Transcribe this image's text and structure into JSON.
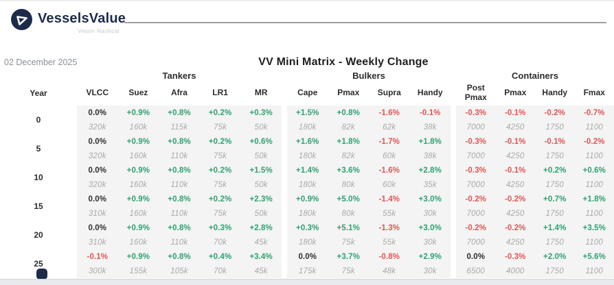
{
  "header": {
    "brand": "VesselsValue",
    "brand_sub": "Veson Nautical",
    "date": "02 December 2025",
    "title": "VV Mini Matrix - Weekly Change"
  },
  "colors": {
    "green": "#2EA172",
    "red": "#E25454",
    "navy": "#1D2B4A",
    "dark_text": "#2E2E2E",
    "value_gray": "#A8A8A8",
    "block_bg": "#F4F4F4"
  },
  "table": {
    "year_header": "Year",
    "groups": [
      {
        "label": "Tankers",
        "columns": [
          "VLCC",
          "Suez",
          "Afra",
          "LR1",
          "MR"
        ]
      },
      {
        "label": "Bulkers",
        "columns": [
          "Cape",
          "Pmax",
          "Supra",
          "Handy"
        ]
      },
      {
        "label": "Containers",
        "columns": [
          "Post Pmax",
          "Pmax",
          "Handy",
          "Fmax"
        ]
      }
    ],
    "rows": [
      {
        "year": "0",
        "groups": [
          {
            "pct": [
              "0.0%",
              "+0.9%",
              "+0.8%",
              "+0.2%",
              "+0.3%"
            ],
            "val": [
              "320k",
              "160k",
              "115k",
              "75k",
              "50k"
            ]
          },
          {
            "pct": [
              "+1.5%",
              "+0.8%",
              "-1.6%",
              "-0.1%"
            ],
            "val": [
              "180k",
              "82k",
              "62k",
              "38k"
            ]
          },
          {
            "pct": [
              "-0.3%",
              "-0.1%",
              "-0.2%",
              "-0.7%"
            ],
            "val": [
              "7000",
              "4250",
              "1750",
              "1100"
            ]
          }
        ]
      },
      {
        "year": "5",
        "groups": [
          {
            "pct": [
              "0.0%",
              "+0.9%",
              "+0.8%",
              "+0.2%",
              "+0.6%"
            ],
            "val": [
              "320k",
              "160k",
              "110k",
              "75k",
              "50k"
            ]
          },
          {
            "pct": [
              "+1.6%",
              "+1.8%",
              "-1.7%",
              "+1.8%"
            ],
            "val": [
              "180k",
              "82k",
              "60k",
              "38k"
            ]
          },
          {
            "pct": [
              "-0.3%",
              "-0.1%",
              "-0.1%",
              "-0.2%"
            ],
            "val": [
              "7000",
              "4250",
              "1750",
              "1100"
            ]
          }
        ]
      },
      {
        "year": "10",
        "groups": [
          {
            "pct": [
              "0.0%",
              "+0.9%",
              "+0.8%",
              "+0.2%",
              "+1.5%"
            ],
            "val": [
              "320k",
              "160k",
              "110k",
              "75k",
              "50k"
            ]
          },
          {
            "pct": [
              "+1.4%",
              "+3.6%",
              "-1.6%",
              "+2.8%"
            ],
            "val": [
              "180k",
              "80k",
              "60k",
              "35k"
            ]
          },
          {
            "pct": [
              "-0.3%",
              "-0.1%",
              "+0.2%",
              "+0.6%"
            ],
            "val": [
              "7000",
              "4250",
              "1750",
              "1100"
            ]
          }
        ]
      },
      {
        "year": "15",
        "groups": [
          {
            "pct": [
              "0.0%",
              "+0.9%",
              "+0.8%",
              "+0.2%",
              "+2.3%"
            ],
            "val": [
              "310k",
              "160k",
              "110k",
              "75k",
              "50k"
            ]
          },
          {
            "pct": [
              "+0.9%",
              "+5.0%",
              "-1.4%",
              "+3.0%"
            ],
            "val": [
              "180k",
              "80k",
              "55k",
              "30k"
            ]
          },
          {
            "pct": [
              "-0.2%",
              "-0.2%",
              "+0.7%",
              "+1.8%"
            ],
            "val": [
              "7000",
              "4250",
              "1750",
              "1100"
            ]
          }
        ]
      },
      {
        "year": "20",
        "groups": [
          {
            "pct": [
              "0.0%",
              "+0.9%",
              "+0.8%",
              "+0.3%",
              "+2.8%"
            ],
            "val": [
              "310k",
              "160k",
              "110k",
              "70k",
              "45k"
            ]
          },
          {
            "pct": [
              "+0.3%",
              "+5.1%",
              "-1.3%",
              "+3.0%"
            ],
            "val": [
              "180k",
              "75k",
              "55k",
              "30k"
            ]
          },
          {
            "pct": [
              "-0.2%",
              "-0.2%",
              "+1.4%",
              "+3.5%"
            ],
            "val": [
              "7000",
              "4250",
              "1750",
              "1100"
            ]
          }
        ]
      },
      {
        "year": "25",
        "groups": [
          {
            "pct": [
              "-0.1%",
              "+0.9%",
              "+0.8%",
              "+0.4%",
              "+3.4%"
            ],
            "val": [
              "300k",
              "155k",
              "105k",
              "70k",
              "45k"
            ]
          },
          {
            "pct": [
              "0.0%",
              "+3.7%",
              "-0.8%",
              "+2.9%"
            ],
            "val": [
              "175k",
              "75k",
              "48k",
              "30k"
            ]
          },
          {
            "pct": [
              "0.0%",
              "-0.3%",
              "+2.0%",
              "+5.6%"
            ],
            "val": [
              "6500",
              "4000",
              "1750",
              "1100"
            ]
          }
        ]
      }
    ]
  }
}
